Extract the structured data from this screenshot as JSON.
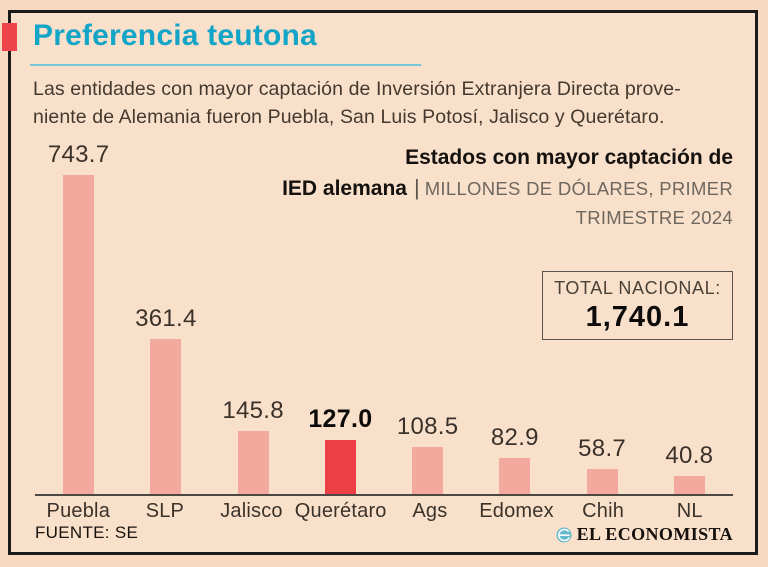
{
  "header": {
    "title": "Preferencia teutona",
    "subtitle_line1": "Las entidades con mayor captación de Inversión Extranjera Directa prove-",
    "subtitle_line2": "niente de Alemania fueron Puebla, San Luis Potosí, Jalisco y Querétaro."
  },
  "chart_header": {
    "title_line1": "Estados con mayor captación de",
    "title_line2_bold": "IED alemana",
    "separator": "|",
    "units_line1": "MILLONES DE DÓLARES, PRIMER",
    "units_line2": "TRIMESTRE 2024"
  },
  "total_box": {
    "label": "TOTAL NACIONAL:",
    "value": "1,740.1"
  },
  "chart_data": {
    "type": "bar",
    "title": "Estados con mayor captación de IED alemana",
    "units": "MILLONES DE DÓLARES, PRIMER TRIMESTRE 2024",
    "categories": [
      "Puebla",
      "SLP",
      "Jalisco",
      "Querétaro",
      "Ags",
      "Edomex",
      "Chih",
      "NL"
    ],
    "values": [
      743.7,
      361.4,
      145.8,
      127.0,
      108.5,
      82.9,
      58.7,
      40.8
    ],
    "value_labels": [
      "743.7",
      "361.4",
      "145.8",
      "127.0",
      "108.5",
      "82.9",
      "58.7",
      "40.8"
    ],
    "highlighted_category": "Querétaro",
    "total_nacional": 1740.1,
    "xlabel": "",
    "ylabel": "",
    "ylim": [
      0,
      800
    ],
    "grid": false,
    "legend": "none",
    "colors": {
      "bar": "#f3a99d",
      "highlight": "#ee3e45"
    }
  },
  "footer": {
    "source": "FUENTE: SE",
    "brand": "EL ECONOMISTA"
  },
  "colors": {
    "background": "#f9e0cb",
    "frame_border": "#1b1b1b",
    "title_cyan": "#13a5c7",
    "accent_red": "#ee454b",
    "underline_cyan": "#74c9d4",
    "axis": "#4d4843",
    "text_dark": "#17120e",
    "units_gray": "#6e675f"
  }
}
